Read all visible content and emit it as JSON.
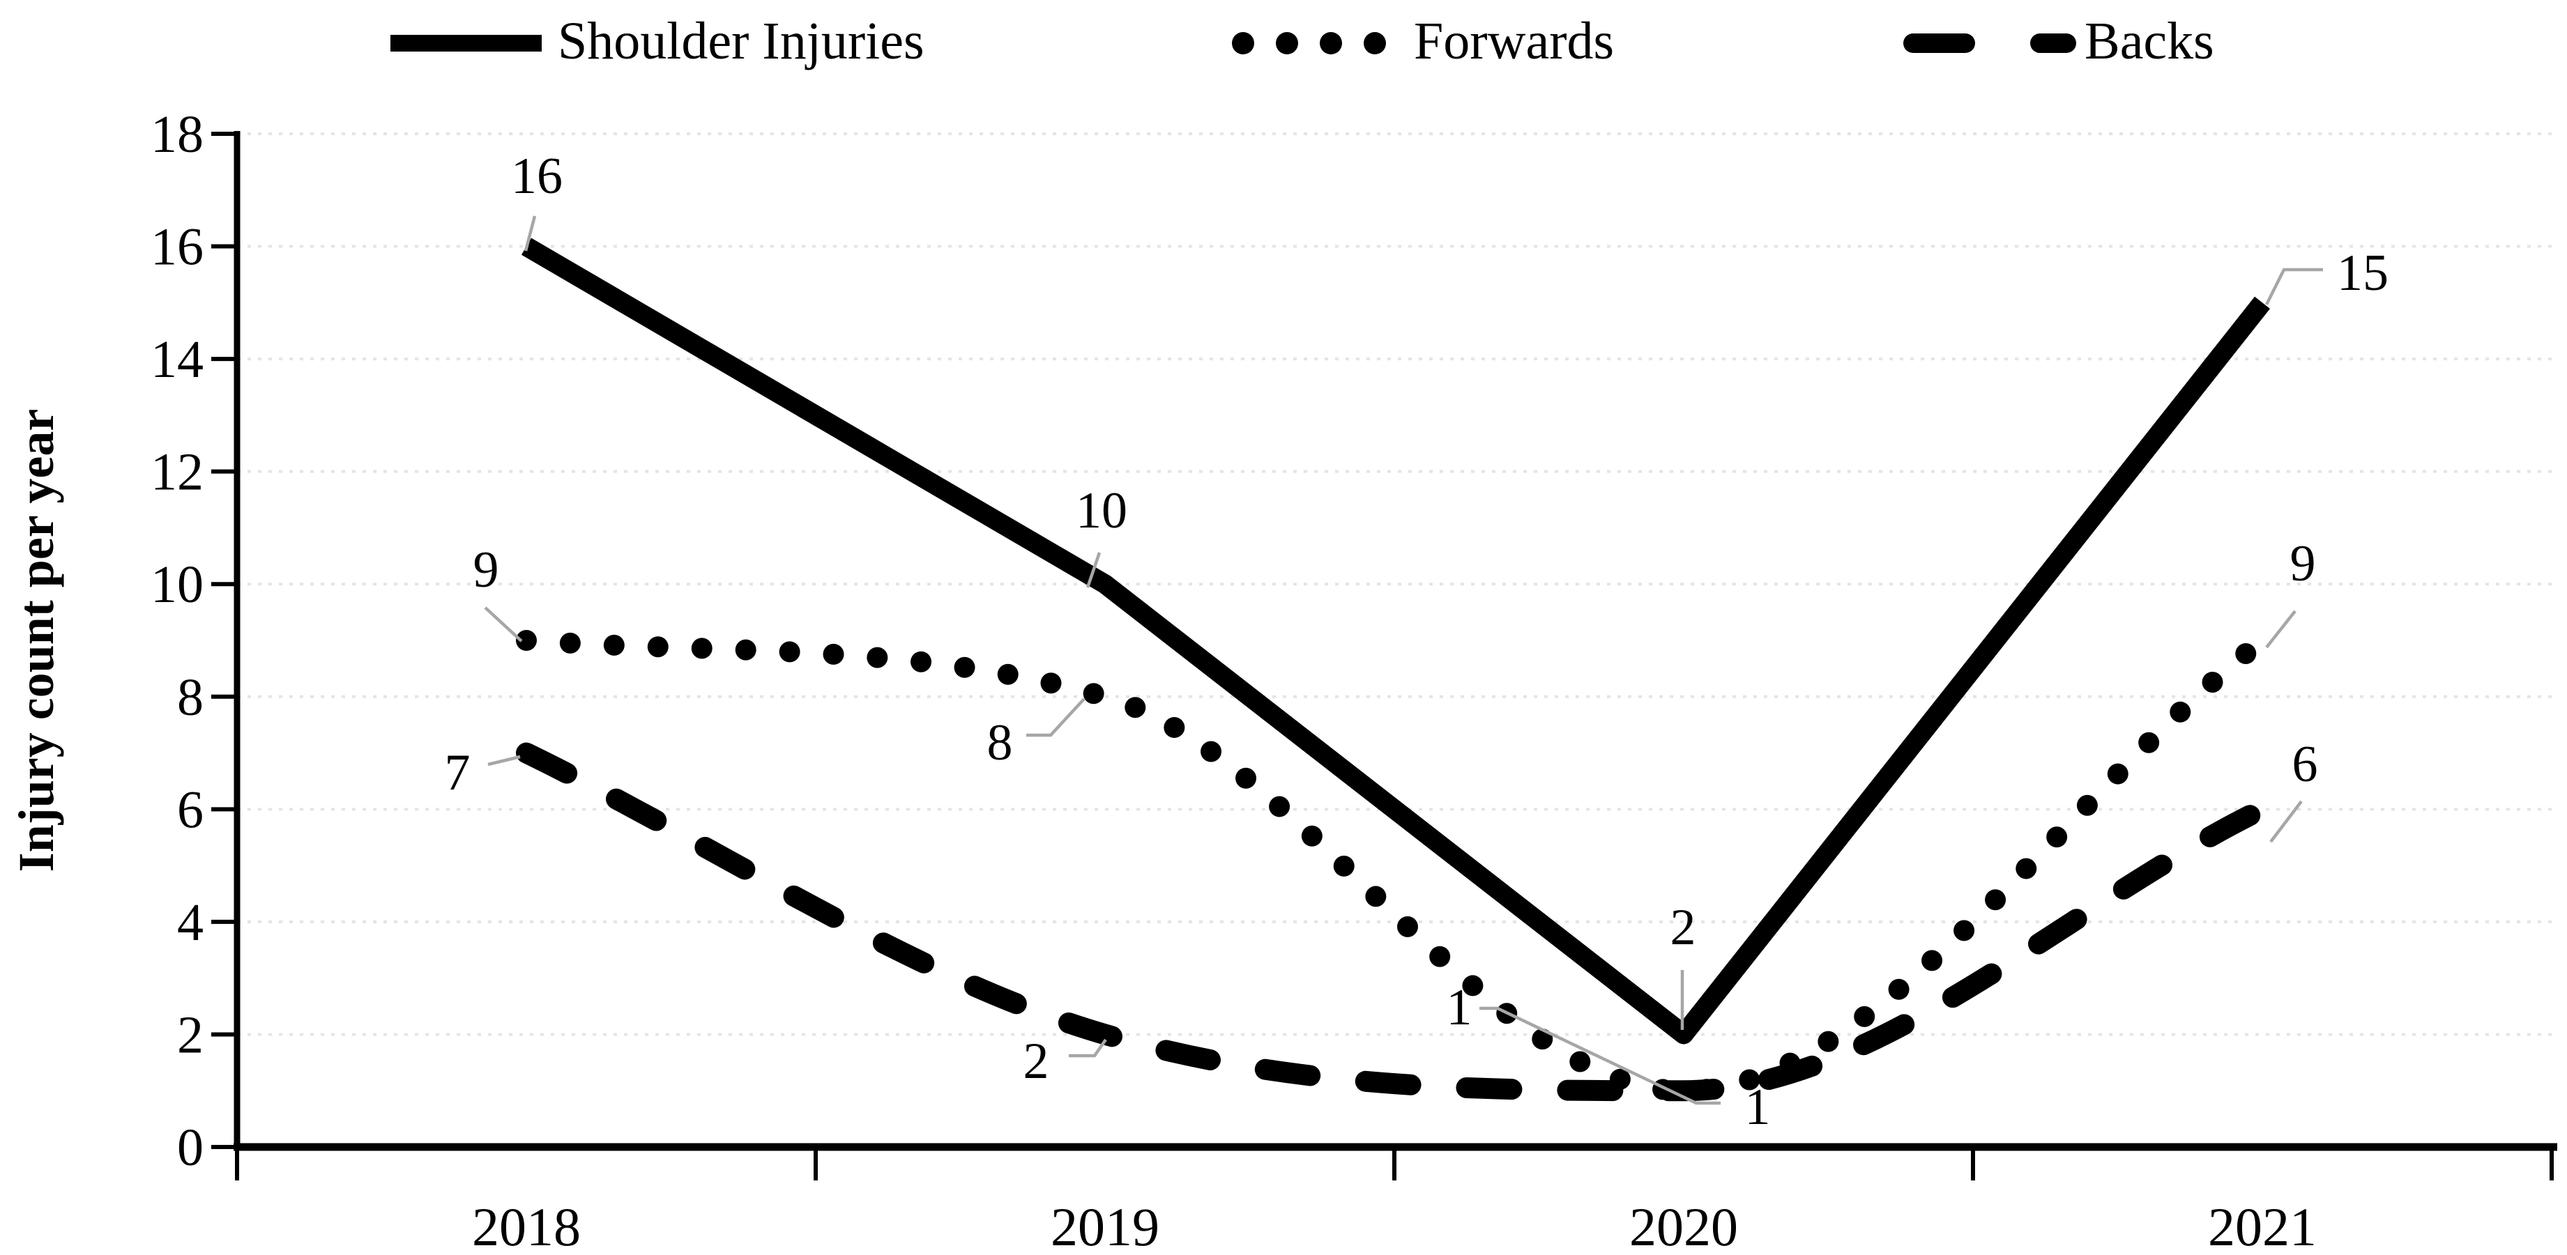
{
  "figure": {
    "background_color": "#ffffff",
    "line_color": "#000000",
    "gridline_color": "#e4e4e4",
    "leader_line_color": "#a6a6a6"
  },
  "legend": {
    "position": "top",
    "items": [
      {
        "label": "Shoulder Injuries",
        "style": "solid"
      },
      {
        "label": "Forwards",
        "style": "dotted"
      },
      {
        "label": "Backs",
        "style": "dashed"
      }
    ]
  },
  "chart_data": {
    "type": "line",
    "title": "",
    "categories": [
      "2018",
      "2019",
      "2020",
      "2021"
    ],
    "series": [
      {
        "name": "Shoulder Injuries",
        "style": "solid",
        "smooth": false,
        "color": "#000000",
        "values": [
          16,
          10,
          2,
          15
        ]
      },
      {
        "name": "Forwards",
        "style": "dotted",
        "smooth": true,
        "color": "#000000",
        "values": [
          9,
          8,
          1,
          9
        ]
      },
      {
        "name": "Backs",
        "style": "dashed",
        "smooth": true,
        "color": "#000000",
        "values": [
          7,
          2,
          1,
          6
        ]
      }
    ],
    "data_labels_shown": true,
    "xlabel": "",
    "ylabel": "Injury count per year",
    "ylim": [
      0,
      18
    ],
    "ytick_step": 2,
    "yticks": [
      0,
      2,
      4,
      6,
      8,
      10,
      12,
      14,
      16,
      18
    ],
    "grid": "horizontal-dotted",
    "legend_position": "top"
  }
}
